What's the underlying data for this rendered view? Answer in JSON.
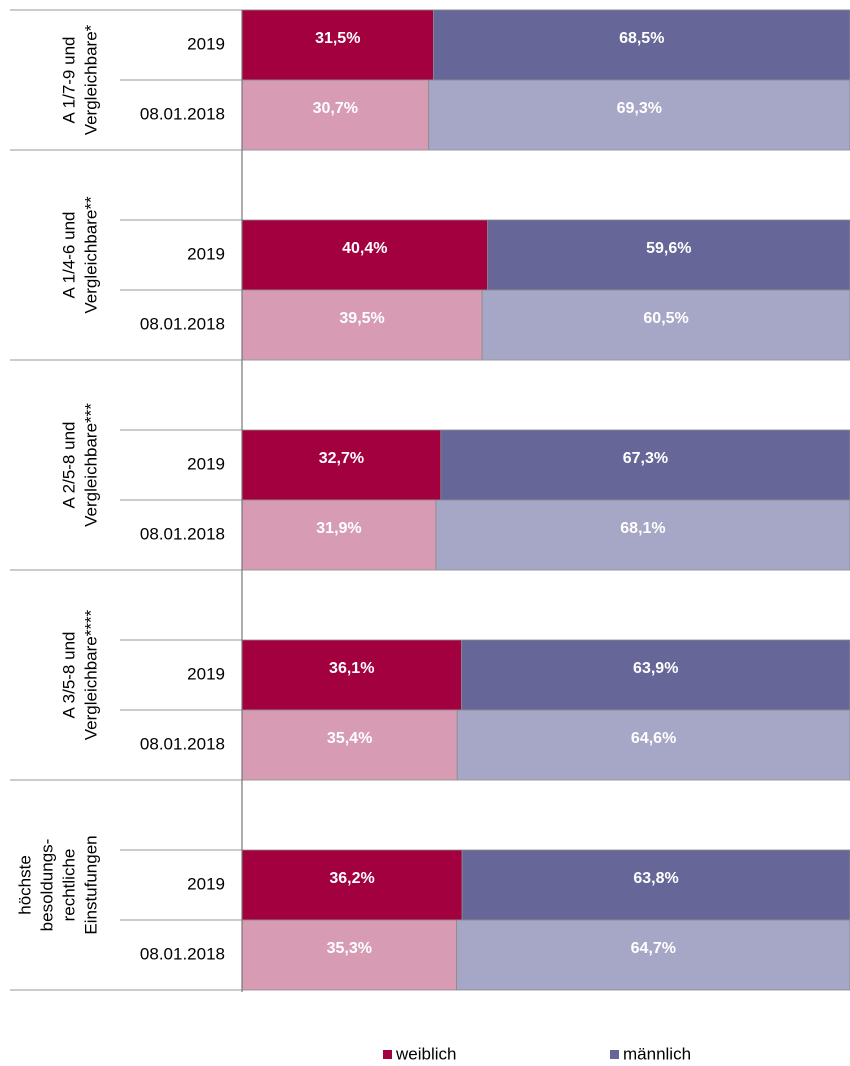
{
  "chart_data": {
    "type": "bar",
    "orientation": "horizontal",
    "stacked": true,
    "groups": [
      {
        "label_lines": [
          "A 1/7-9 und",
          "Vergleichbare*"
        ]
      },
      {
        "label_lines": [
          "A 1/4-6 und",
          "Vergleichbare**"
        ]
      },
      {
        "label_lines": [
          "A 2/5-8 und",
          "Vergleichbare***"
        ]
      },
      {
        "label_lines": [
          "A 3/5-8 und",
          "Vergleichbare****"
        ]
      },
      {
        "label_lines": [
          "höchste",
          "besoldungs-",
          "rechtliche",
          "Einstufungen"
        ]
      }
    ],
    "categories": [
      "2019",
      "08.01.2018",
      "2019",
      "08.01.2018",
      "2019",
      "08.01.2018",
      "2019",
      "08.01.2018",
      "2019",
      "08.01.2018"
    ],
    "xlim": [
      0,
      100
    ],
    "series": [
      {
        "name": "weiblich",
        "color": "#a3003f",
        "colors": [
          "#a3003f",
          "#d79cb4",
          "#a3003f",
          "#d79cb4",
          "#a3003f",
          "#d79cb4",
          "#a3003f",
          "#d79cb4",
          "#a3003f",
          "#d79cb4"
        ],
        "values": [
          31.5,
          30.7,
          40.4,
          39.5,
          32.7,
          31.9,
          36.1,
          35.4,
          36.2,
          35.3
        ],
        "value_labels": [
          "31,5%",
          "30,7%",
          "40,4%",
          "39,5%",
          "32,7%",
          "31,9%",
          "36,1%",
          "35,4%",
          "36,2%",
          "35,3%"
        ]
      },
      {
        "name": "männlich",
        "color": "#666699",
        "colors": [
          "#666699",
          "#a6a6c6",
          "#666699",
          "#a6a6c6",
          "#666699",
          "#a6a6c6",
          "#666699",
          "#a6a6c6",
          "#666699",
          "#a6a6c6"
        ],
        "values": [
          68.5,
          69.3,
          59.6,
          60.5,
          67.3,
          68.1,
          63.9,
          64.6,
          63.8,
          64.7
        ],
        "value_labels": [
          "68,5%",
          "69,3%",
          "59,6%",
          "60,5%",
          "67,3%",
          "68,1%",
          "63,9%",
          "64,6%",
          "63,8%",
          "64,7%"
        ]
      }
    ]
  }
}
